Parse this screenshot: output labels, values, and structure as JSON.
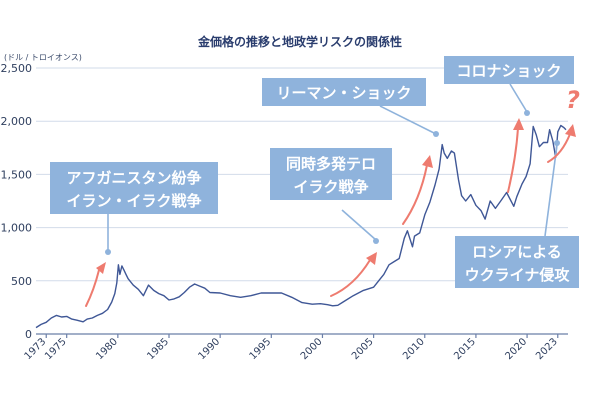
{
  "chart_data": {
    "type": "line",
    "title": "金価格の推移と地政学リスクの関係性",
    "ylabel": "(ドル / トロイオンス)",
    "xlabel": "",
    "ylim": [
      0,
      2500
    ],
    "xlim": [
      1972,
      2024
    ],
    "y_ticks": [
      0,
      500,
      1000,
      1500,
      2000,
      2500
    ],
    "y_tick_labels": [
      "0",
      "500",
      "1,000",
      "1,500",
      "2,000",
      "2,500"
    ],
    "x_ticks": [
      1973,
      1975,
      1980,
      1985,
      1990,
      1995,
      2000,
      2005,
      2010,
      2015,
      2020,
      2023
    ],
    "x_tick_labels": [
      "1973",
      "1975",
      "1980",
      "1985",
      "1990",
      "1995",
      "2000",
      "2005",
      "2010",
      "2015",
      "2020",
      "2023"
    ],
    "grid": true,
    "series": [
      {
        "name": "金価格",
        "color": "#3f5796",
        "x": [
          1972.0,
          1972.5,
          1973.0,
          1973.5,
          1974.0,
          1974.5,
          1975.0,
          1975.5,
          1976.0,
          1976.6,
          1977.0,
          1977.5,
          1978.0,
          1978.5,
          1979.0,
          1979.4,
          1979.7,
          1979.9,
          1980.05,
          1980.2,
          1980.4,
          1980.6,
          1980.8,
          1981.0,
          1981.5,
          1982.0,
          1982.5,
          1983.0,
          1983.5,
          1984.0,
          1984.5,
          1985.0,
          1985.5,
          1986.0,
          1986.5,
          1987.0,
          1987.5,
          1988.0,
          1988.5,
          1989.0,
          1990.0,
          1991.0,
          1992.0,
          1993.0,
          1994.0,
          1995.0,
          1996.0,
          1997.0,
          1998.0,
          1999.0,
          1999.8,
          2000.5,
          2001.0,
          2001.5,
          2002.0,
          2003.0,
          2004.0,
          2005.0,
          2006.0,
          2006.5,
          2007.0,
          2007.5,
          2008.0,
          2008.3,
          2008.8,
          2009.0,
          2009.5,
          2010.0,
          2010.5,
          2011.0,
          2011.4,
          2011.7,
          2011.9,
          2012.2,
          2012.6,
          2012.9,
          2013.3,
          2013.6,
          2014.0,
          2014.5,
          2015.0,
          2015.5,
          2015.9,
          2016.4,
          2016.9,
          2017.5,
          2018.0,
          2018.7,
          2019.0,
          2019.5,
          2019.9,
          2020.3,
          2020.6,
          2020.9,
          2021.2,
          2021.6,
          2022.0,
          2022.2,
          2022.5,
          2022.8,
          2023.0,
          2023.3,
          2023.6,
          2023.8
        ],
        "values": [
          60,
          90,
          110,
          150,
          175,
          160,
          165,
          140,
          130,
          115,
          140,
          150,
          175,
          195,
          230,
          300,
          380,
          480,
          650,
          560,
          640,
          600,
          560,
          520,
          460,
          420,
          360,
          460,
          410,
          380,
          360,
          320,
          330,
          350,
          390,
          440,
          470,
          450,
          430,
          390,
          385,
          360,
          345,
          360,
          385,
          385,
          385,
          345,
          295,
          280,
          285,
          275,
          265,
          270,
          300,
          360,
          410,
          440,
          560,
          650,
          680,
          710,
          900,
          970,
          820,
          920,
          950,
          1120,
          1240,
          1400,
          1550,
          1780,
          1700,
          1650,
          1720,
          1700,
          1450,
          1300,
          1250,
          1310,
          1210,
          1160,
          1080,
          1250,
          1180,
          1260,
          1330,
          1200,
          1290,
          1410,
          1480,
          1600,
          1950,
          1870,
          1760,
          1800,
          1800,
          1920,
          1820,
          1660,
          1900,
          1960,
          1940,
          1920
        ]
      }
    ],
    "annotations": [
      {
        "line1": "アフガニスタン紛争",
        "line2": "イラン・イラク戦争"
      },
      {
        "line1": "同時多発テロ",
        "line2": "イラク戦争"
      },
      {
        "line1": "リーマン・ショック",
        "line2": ""
      },
      {
        "line1": "コロナショック",
        "line2": ""
      },
      {
        "line1": "ロシアによる",
        "line2": "ウクライナ侵攻"
      }
    ],
    "trend_marker": "?"
  },
  "colors": {
    "line": "#3f5796",
    "callout": "#8fb3dc",
    "arrow": "#ee7b6f",
    "text": "#2a3d6e"
  }
}
